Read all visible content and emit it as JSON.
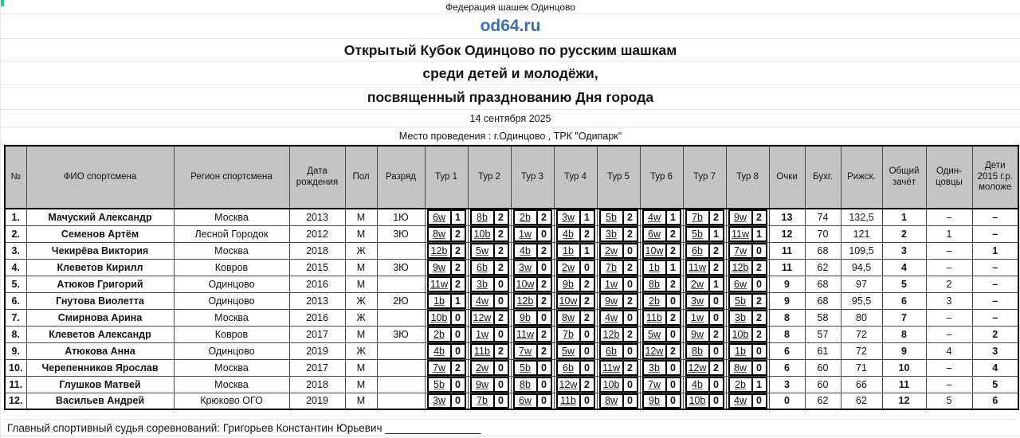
{
  "colors": {
    "accent_blue": "#3d6fa8",
    "header_gray": "#c3c3c3",
    "selection_teal": "#27c7a5",
    "border_black": "#000000"
  },
  "header": {
    "federation": "Федерация шашек Одинцово",
    "site": "od64.ru",
    "title_line1": "Открытый Кубок Одинцово по русским шашкам",
    "title_line2": "среди детей и молодёжи,",
    "title_line3": "посвященный празднованию Дня города",
    "date": "14 сентября 2025",
    "venue": "Место проведения : г.Одинцово , ТРК \"Одипарк\""
  },
  "table": {
    "columns": {
      "num": "№",
      "name": "ФИО спортсмена",
      "region": "Регион спортсмена",
      "birth": "Дата рождения",
      "sex": "Пол",
      "rank": "Разряд",
      "rounds": [
        "Тур 1",
        "Тур 2",
        "Тур 3",
        "Тур 4",
        "Тур 5",
        "Тур 6",
        "Тур 7",
        "Тур 8"
      ],
      "points": "Очки",
      "buchholz": "Бухг.",
      "riga": "Рижск.",
      "overall": "Общий зачёт",
      "odintsovo": "Один-цовцы",
      "children": "Дети 2015 г.р. моложе"
    },
    "rows": [
      {
        "num": "1.",
        "name": "Мачуский Александр",
        "region": "Москва",
        "birth": "2013",
        "sex": "М",
        "rank": "1Ю",
        "rounds": [
          {
            "opp": "6w",
            "res": "1"
          },
          {
            "opp": "8b",
            "res": "2"
          },
          {
            "opp": "2b",
            "res": "2"
          },
          {
            "opp": "3w",
            "res": "1"
          },
          {
            "opp": "5b",
            "res": "2"
          },
          {
            "opp": "4w",
            "res": "1"
          },
          {
            "opp": "7b",
            "res": "2"
          },
          {
            "opp": "9w",
            "res": "2"
          }
        ],
        "points": "13",
        "buchholz": "74",
        "riga": "132,5",
        "overall": "1",
        "odintsovo": "–",
        "children": "–"
      },
      {
        "num": "2.",
        "name": "Семенов Артём",
        "region": "Лесной Городок",
        "birth": "2012",
        "sex": "М",
        "rank": "3Ю",
        "rounds": [
          {
            "opp": "8w",
            "res": "2"
          },
          {
            "opp": "10b",
            "res": "2"
          },
          {
            "opp": "1w",
            "res": "0"
          },
          {
            "opp": "4b",
            "res": "2"
          },
          {
            "opp": "3b",
            "res": "2"
          },
          {
            "opp": "6w",
            "res": "2"
          },
          {
            "opp": "5b",
            "res": "1"
          },
          {
            "opp": "11w",
            "res": "1"
          }
        ],
        "points": "12",
        "buchholz": "70",
        "riga": "121",
        "overall": "2",
        "odintsovo": "1",
        "children": "–"
      },
      {
        "num": "3.",
        "name": "Чекирёва Виктория",
        "region": "Москва",
        "birth": "2018",
        "sex": "Ж",
        "rank": "",
        "rounds": [
          {
            "opp": "12b",
            "res": "2"
          },
          {
            "opp": "5w",
            "res": "2"
          },
          {
            "opp": "4b",
            "res": "2"
          },
          {
            "opp": "1b",
            "res": "1"
          },
          {
            "opp": "2w",
            "res": "0"
          },
          {
            "opp": "10w",
            "res": "2"
          },
          {
            "opp": "6b",
            "res": "2"
          },
          {
            "opp": "7w",
            "res": "0"
          }
        ],
        "points": "11",
        "buchholz": "68",
        "riga": "109,5",
        "overall": "3",
        "odintsovo": "–",
        "children": "1"
      },
      {
        "num": "4.",
        "name": "Клеветов Кирилл",
        "region": "Ковров",
        "birth": "2015",
        "sex": "М",
        "rank": "3Ю",
        "rounds": [
          {
            "opp": "9w",
            "res": "2"
          },
          {
            "opp": "6b",
            "res": "2"
          },
          {
            "opp": "3w",
            "res": "0"
          },
          {
            "opp": "2w",
            "res": "0"
          },
          {
            "opp": "7b",
            "res": "2"
          },
          {
            "opp": "1b",
            "res": "1"
          },
          {
            "opp": "11w",
            "res": "2"
          },
          {
            "opp": "12b",
            "res": "2"
          }
        ],
        "points": "11",
        "buchholz": "62",
        "riga": "94,5",
        "overall": "4",
        "odintsovo": "–",
        "children": "–"
      },
      {
        "num": "5.",
        "name": "Атюков Григорий",
        "region": "Одинцово",
        "birth": "2016",
        "sex": "М",
        "rank": "",
        "rounds": [
          {
            "opp": "11w",
            "res": "2"
          },
          {
            "opp": "3b",
            "res": "0"
          },
          {
            "opp": "10w",
            "res": "2"
          },
          {
            "opp": "9b",
            "res": "2"
          },
          {
            "opp": "1w",
            "res": "0"
          },
          {
            "opp": "8b",
            "res": "2"
          },
          {
            "opp": "2w",
            "res": "1"
          },
          {
            "opp": "6w",
            "res": "0"
          }
        ],
        "points": "9",
        "buchholz": "68",
        "riga": "97",
        "overall": "5",
        "odintsovo": "2",
        "children": "–"
      },
      {
        "num": "6.",
        "name": "Гнутова Виолетта",
        "region": "Одинцово",
        "birth": "2013",
        "sex": "Ж",
        "rank": "2Ю",
        "rounds": [
          {
            "opp": "1b",
            "res": "1"
          },
          {
            "opp": "4w",
            "res": "0"
          },
          {
            "opp": "12b",
            "res": "2"
          },
          {
            "opp": "10w",
            "res": "2"
          },
          {
            "opp": "9w",
            "res": "2"
          },
          {
            "opp": "2b",
            "res": "0"
          },
          {
            "opp": "3w",
            "res": "0"
          },
          {
            "opp": "5b",
            "res": "2"
          }
        ],
        "points": "9",
        "buchholz": "68",
        "riga": "95,5",
        "overall": "6",
        "odintsovo": "3",
        "children": "–"
      },
      {
        "num": "7.",
        "name": "Смирнова Арина",
        "region": "Москва",
        "birth": "2016",
        "sex": "Ж",
        "rank": "",
        "rounds": [
          {
            "opp": "10b",
            "res": "0"
          },
          {
            "opp": "12w",
            "res": "2"
          },
          {
            "opp": "9b",
            "res": "0"
          },
          {
            "opp": "8w",
            "res": "2"
          },
          {
            "opp": "4w",
            "res": "0"
          },
          {
            "opp": "11b",
            "res": "2"
          },
          {
            "opp": "1w",
            "res": "0"
          },
          {
            "opp": "3b",
            "res": "2"
          }
        ],
        "points": "8",
        "buchholz": "58",
        "riga": "80",
        "overall": "7",
        "odintsovo": "–",
        "children": "–"
      },
      {
        "num": "8.",
        "name": "Клеветов Александр",
        "region": "Ковров",
        "birth": "2017",
        "sex": "М",
        "rank": "3Ю",
        "rounds": [
          {
            "opp": "2b",
            "res": "0"
          },
          {
            "opp": "1w",
            "res": "0"
          },
          {
            "opp": "11w",
            "res": "2"
          },
          {
            "opp": "7b",
            "res": "0"
          },
          {
            "opp": "12b",
            "res": "2"
          },
          {
            "opp": "5w",
            "res": "0"
          },
          {
            "opp": "9w",
            "res": "2"
          },
          {
            "opp": "10b",
            "res": "2"
          }
        ],
        "points": "8",
        "buchholz": "57",
        "riga": "72",
        "overall": "8",
        "odintsovo": "–",
        "children": "2"
      },
      {
        "num": "9.",
        "name": "Атюкова Анна",
        "region": "Одинцово",
        "birth": "2019",
        "sex": "Ж",
        "rank": "",
        "rounds": [
          {
            "opp": "4b",
            "res": "0"
          },
          {
            "opp": "11b",
            "res": "2"
          },
          {
            "opp": "7w",
            "res": "2"
          },
          {
            "opp": "5w",
            "res": "0"
          },
          {
            "opp": "6b",
            "res": "0"
          },
          {
            "opp": "12w",
            "res": "2"
          },
          {
            "opp": "8b",
            "res": "0"
          },
          {
            "opp": "1b",
            "res": "0"
          }
        ],
        "points": "6",
        "buchholz": "61",
        "riga": "72",
        "overall": "9",
        "odintsovo": "4",
        "children": "3"
      },
      {
        "num": "10.",
        "name": "Черепенников Ярослав",
        "region": "Москва",
        "birth": "2017",
        "sex": "М",
        "rank": "",
        "rounds": [
          {
            "opp": "7w",
            "res": "2"
          },
          {
            "opp": "2w",
            "res": "0"
          },
          {
            "opp": "5b",
            "res": "0"
          },
          {
            "opp": "6b",
            "res": "0"
          },
          {
            "opp": "11w",
            "res": "2"
          },
          {
            "opp": "3b",
            "res": "0"
          },
          {
            "opp": "12w",
            "res": "2"
          },
          {
            "opp": "8w",
            "res": "0"
          }
        ],
        "points": "6",
        "buchholz": "60",
        "riga": "71",
        "overall": "10",
        "odintsovo": "–",
        "children": "4"
      },
      {
        "num": "11.",
        "name": "Глушков Матвей",
        "region": "Москва",
        "birth": "2018",
        "sex": "М",
        "rank": "",
        "rounds": [
          {
            "opp": "5b",
            "res": "0"
          },
          {
            "opp": "9w",
            "res": "0"
          },
          {
            "opp": "8b",
            "res": "0"
          },
          {
            "opp": "12w",
            "res": "2"
          },
          {
            "opp": "10b",
            "res": "0"
          },
          {
            "opp": "7w",
            "res": "0"
          },
          {
            "opp": "4b",
            "res": "0"
          },
          {
            "opp": "2b",
            "res": "1"
          }
        ],
        "points": "3",
        "buchholz": "60",
        "riga": "66",
        "overall": "11",
        "odintsovo": "–",
        "children": "5"
      },
      {
        "num": "12.",
        "name": "Васильев Андрей",
        "region": "Крюково ОГО",
        "birth": "2019",
        "sex": "М",
        "rank": "",
        "rounds": [
          {
            "opp": "3w",
            "res": "0"
          },
          {
            "opp": "7b",
            "res": "0"
          },
          {
            "opp": "6w",
            "res": "0"
          },
          {
            "opp": "11b",
            "res": "0"
          },
          {
            "opp": "8w",
            "res": "0"
          },
          {
            "opp": "9b",
            "res": "0"
          },
          {
            "opp": "10b",
            "res": "0"
          },
          {
            "opp": "4w",
            "res": "0"
          }
        ],
        "points": "0",
        "buchholz": "62",
        "riga": "62",
        "overall": "12",
        "odintsovo": "5",
        "children": "6"
      }
    ]
  },
  "footer": {
    "judge_label": "Главный спортивный судья соревнований:",
    "judge_name": "Григорьев Константин Юрьевич",
    "signature_line": "________________"
  }
}
